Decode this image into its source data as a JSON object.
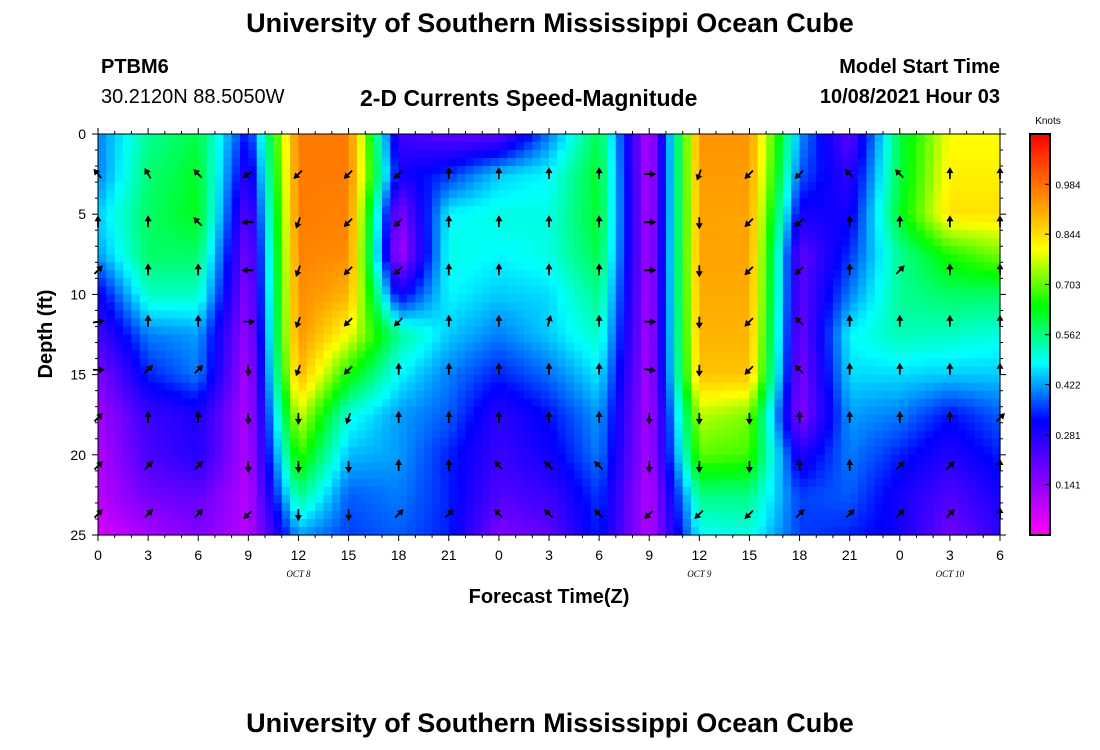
{
  "page": {
    "title_top": "University of Southern Mississippi Ocean Cube",
    "title_bottom": "University of Southern Mississippi Ocean Cube"
  },
  "header": {
    "station_name": "PTBM6",
    "station_coords": "30.2120N  88.5050W",
    "chart_title": "2-D Currents Speed-Magnitude",
    "model_label": "Model Start Time",
    "model_date": "10/08/2021 Hour 03"
  },
  "chart_data": {
    "type": "heatmap",
    "title": "2-D Currents Speed-Magnitude",
    "xlabel": "Forecast Time(Z)",
    "ylabel": "Depth (ft)",
    "x_tick_labels": [
      "0",
      "3",
      "6",
      "9",
      "12",
      "15",
      "18",
      "21",
      "0",
      "3",
      "6",
      "9",
      "12",
      "15",
      "18",
      "21",
      "0",
      "3",
      "6"
    ],
    "x_range_hours": [
      0,
      54
    ],
    "day_labels": [
      {
        "label": "OCT 8",
        "hour": 12
      },
      {
        "label": "OCT 9",
        "hour": 36
      },
      {
        "label": "OCT 10",
        "hour": 51
      }
    ],
    "y_ticks": [
      0,
      5,
      10,
      15,
      20,
      25
    ],
    "ylim": [
      0,
      25
    ],
    "y_direction": "depth increases downward",
    "colorbar": {
      "unit": "Knots",
      "range": [
        0.0,
        1.125
      ],
      "ticks": [
        0.141,
        0.281,
        0.422,
        0.562,
        0.703,
        0.844,
        0.984
      ],
      "tick_labels": [
        "0.141",
        "0.281",
        "0.422",
        "0.562",
        "0.703",
        "0.844",
        "0.984"
      ],
      "colormap": [
        "#ff00ff",
        "#8000ff",
        "#0000ff",
        "#00ffff",
        "#00ff00",
        "#ffff00",
        "#ff8000",
        "#ff0000"
      ]
    },
    "depths_ft": [
      0,
      2.5,
      5,
      7.5,
      10,
      12.5,
      15,
      17.5,
      20,
      22.5,
      25
    ],
    "time_hours": [
      0,
      3,
      6,
      9,
      12,
      15,
      18,
      21,
      24,
      27,
      30,
      33,
      36,
      39,
      42,
      45,
      48,
      51,
      54
    ],
    "speed_knots": [
      [
        0.4,
        0.55,
        0.6,
        0.32,
        0.97,
        0.97,
        0.24,
        0.2,
        0.2,
        0.4,
        0.6,
        0.08,
        0.94,
        0.94,
        0.42,
        0.2,
        0.6,
        0.8,
        0.8
      ],
      [
        0.4,
        0.57,
        0.62,
        0.26,
        0.97,
        0.97,
        0.3,
        0.35,
        0.45,
        0.48,
        0.62,
        0.08,
        0.93,
        0.93,
        0.38,
        0.26,
        0.6,
        0.82,
        0.82
      ],
      [
        0.45,
        0.58,
        0.63,
        0.2,
        0.97,
        0.96,
        0.15,
        0.48,
        0.5,
        0.5,
        0.62,
        0.09,
        0.92,
        0.92,
        0.3,
        0.3,
        0.62,
        0.84,
        0.84
      ],
      [
        0.42,
        0.58,
        0.58,
        0.16,
        0.96,
        0.95,
        0.1,
        0.5,
        0.48,
        0.5,
        0.6,
        0.1,
        0.92,
        0.92,
        0.2,
        0.35,
        0.55,
        0.66,
        0.72
      ],
      [
        0.3,
        0.52,
        0.52,
        0.14,
        0.95,
        0.9,
        0.3,
        0.48,
        0.45,
        0.46,
        0.56,
        0.1,
        0.91,
        0.91,
        0.2,
        0.4,
        0.55,
        0.58,
        0.58
      ],
      [
        0.24,
        0.4,
        0.42,
        0.12,
        0.94,
        0.8,
        0.55,
        0.45,
        0.4,
        0.45,
        0.52,
        0.1,
        0.9,
        0.9,
        0.18,
        0.48,
        0.53,
        0.52,
        0.5
      ],
      [
        0.16,
        0.34,
        0.4,
        0.1,
        0.9,
        0.65,
        0.48,
        0.4,
        0.34,
        0.39,
        0.47,
        0.1,
        0.88,
        0.88,
        0.16,
        0.46,
        0.46,
        0.45,
        0.45
      ],
      [
        0.12,
        0.25,
        0.29,
        0.1,
        0.78,
        0.5,
        0.42,
        0.38,
        0.27,
        0.33,
        0.42,
        0.1,
        0.76,
        0.72,
        0.15,
        0.42,
        0.4,
        0.33,
        0.38
      ],
      [
        0.1,
        0.23,
        0.28,
        0.1,
        0.68,
        0.44,
        0.42,
        0.34,
        0.25,
        0.3,
        0.4,
        0.1,
        0.7,
        0.68,
        0.28,
        0.4,
        0.34,
        0.28,
        0.34
      ],
      [
        0.09,
        0.18,
        0.2,
        0.09,
        0.56,
        0.38,
        0.4,
        0.34,
        0.22,
        0.25,
        0.36,
        0.09,
        0.56,
        0.56,
        0.36,
        0.38,
        0.3,
        0.22,
        0.3
      ],
      [
        0.05,
        0.11,
        0.16,
        0.09,
        0.42,
        0.36,
        0.38,
        0.34,
        0.16,
        0.2,
        0.34,
        0.09,
        0.48,
        0.5,
        0.36,
        0.34,
        0.3,
        0.18,
        0.26
      ]
    ],
    "vector_depths_ft": [
      2.5,
      5.5,
      8.5,
      11.7,
      14.7,
      17.7,
      20.7,
      23.7
    ],
    "vector_direction_deg": [
      [
        320,
        330,
        315,
        240,
        225,
        225,
        225,
        0,
        0,
        0,
        0,
        90,
        200,
        225,
        225,
        315,
        315,
        0,
        0
      ],
      [
        0,
        0,
        315,
        270,
        200,
        225,
        225,
        0,
        0,
        0,
        0,
        90,
        180,
        225,
        225,
        0,
        0,
        0,
        0
      ],
      [
        45,
        0,
        0,
        270,
        200,
        225,
        225,
        0,
        0,
        0,
        0,
        90,
        180,
        225,
        225,
        0,
        45,
        0,
        0
      ],
      [
        80,
        0,
        0,
        90,
        200,
        225,
        225,
        0,
        0,
        15,
        0,
        90,
        180,
        225,
        315,
        0,
        0,
        0,
        0
      ],
      [
        90,
        45,
        45,
        180,
        200,
        225,
        0,
        0,
        0,
        0,
        0,
        100,
        180,
        225,
        315,
        0,
        0,
        0,
        0
      ],
      [
        45,
        0,
        0,
        180,
        180,
        200,
        0,
        0,
        0,
        0,
        0,
        180,
        180,
        180,
        0,
        0,
        0,
        0,
        45
      ],
      [
        45,
        45,
        45,
        180,
        180,
        180,
        0,
        0,
        315,
        315,
        315,
        180,
        180,
        180,
        0,
        0,
        45,
        45,
        0
      ],
      [
        45,
        45,
        45,
        225,
        180,
        180,
        45,
        45,
        315,
        315,
        315,
        225,
        225,
        225,
        45,
        45,
        45,
        45,
        0
      ]
    ]
  }
}
